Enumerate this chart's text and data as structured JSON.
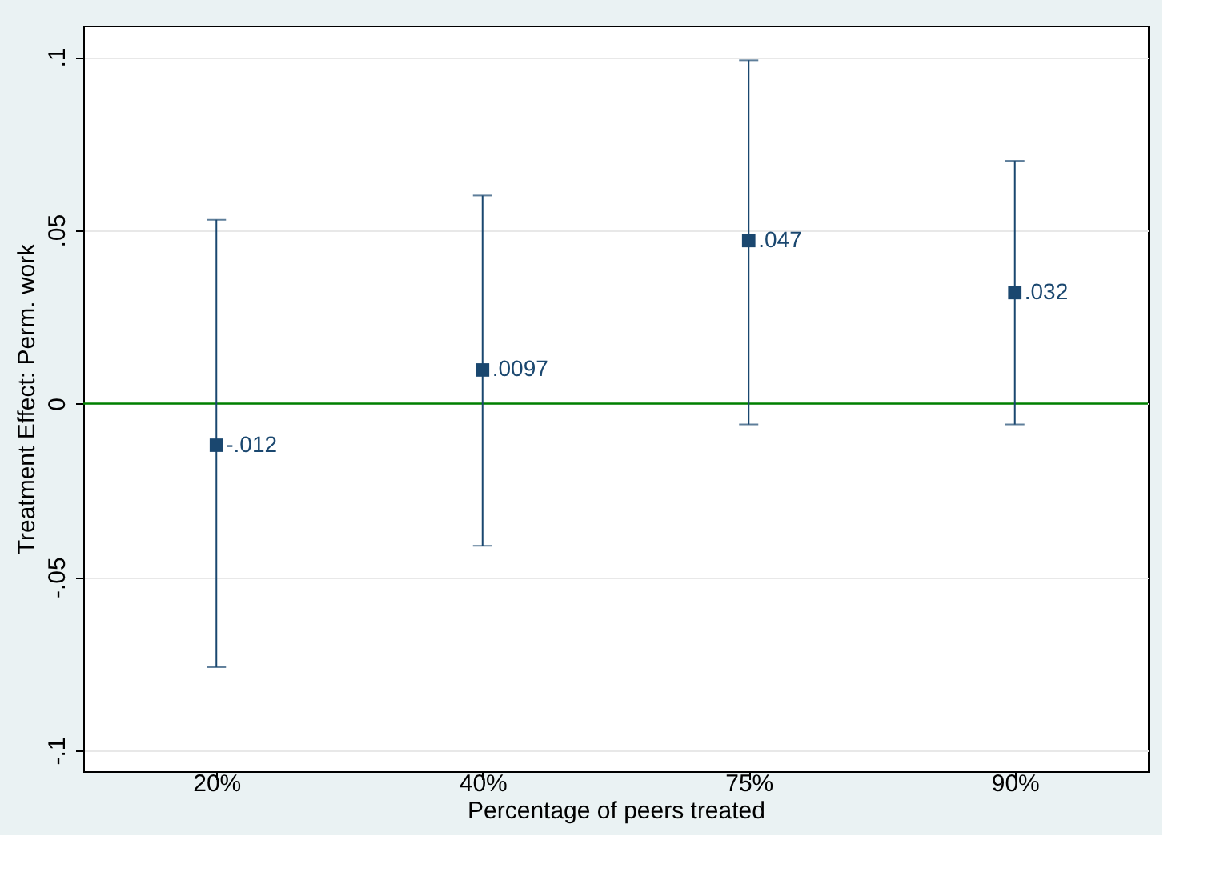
{
  "chart_data": {
    "type": "scatter",
    "xlabel": "Percentage of peers treated",
    "ylabel": "Treatment Effect: Perm. work",
    "categories": [
      "20%",
      "40%",
      "75%",
      "90%"
    ],
    "values": [
      -0.012,
      0.0097,
      0.047,
      0.032
    ],
    "value_labels": [
      "-.012",
      ".0097",
      ".047",
      ".032"
    ],
    "errors": [
      [
        -0.076,
        0.053
      ],
      [
        -0.041,
        0.06
      ],
      [
        -0.006,
        0.099
      ],
      [
        -0.006,
        0.07
      ]
    ],
    "color": "#1a476f",
    "marker": "square",
    "ylim": [
      -0.106,
      0.109
    ],
    "yticks": [
      {
        "value": -0.1,
        "label": "-.1"
      },
      {
        "value": -0.05,
        "label": "-.05"
      },
      0,
      {
        "value": 0.05,
        "label": ".05"
      },
      {
        "value": 0.1,
        "label": ".1"
      }
    ],
    "ref_lines": [
      {
        "axis": "y",
        "value": 0,
        "color": "#008000"
      }
    ],
    "grid": "y"
  }
}
